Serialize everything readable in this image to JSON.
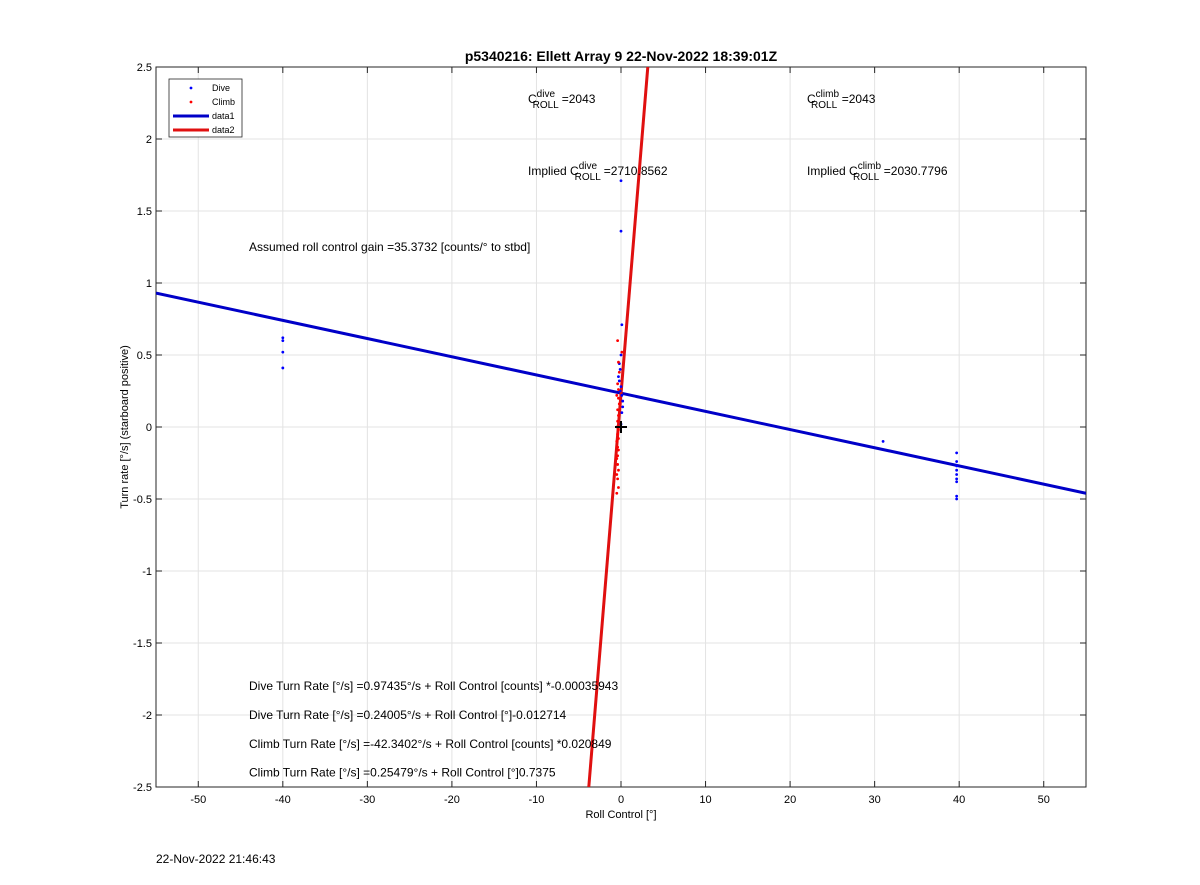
{
  "chart_data": {
    "type": "scatter",
    "title": "p5340216: Ellett Array 9 22-Nov-2022 18:39:01Z",
    "xlabel": "Roll Control [°]",
    "ylabel": "Turn rate [°/s] (starboard positive)",
    "xlim": [
      -55,
      55
    ],
    "ylim": [
      -2.5,
      2.5
    ],
    "xticks": [
      -50,
      -40,
      -30,
      -20,
      -10,
      0,
      10,
      20,
      30,
      40,
      50
    ],
    "xtick_labels": [
      "-50",
      "-40",
      "-30",
      "-20",
      "-10",
      "0",
      "10",
      "20",
      "30",
      "40",
      "50"
    ],
    "yticks": [
      -2.5,
      -2,
      -1.5,
      -1,
      -0.5,
      0,
      0.5,
      1,
      1.5,
      2,
      2.5
    ],
    "ytick_labels": [
      "-2.5",
      "-2",
      "-1.5",
      "-1",
      "-0.5",
      "0",
      "0.5",
      "1",
      "1.5",
      "2",
      "2.5"
    ],
    "grid": true,
    "legend_position": "top-left",
    "series": [
      {
        "name": "Dive",
        "kind": "points",
        "color": "#0000ff",
        "points": [
          [
            -40,
            0.62
          ],
          [
            -40,
            0.6
          ],
          [
            -40,
            0.52
          ],
          [
            -40,
            0.41
          ],
          [
            0,
            1.71
          ],
          [
            0,
            1.36
          ],
          [
            0.1,
            0.71
          ],
          [
            0,
            0.5
          ],
          [
            -0.2,
            0.44
          ],
          [
            -0.1,
            0.4
          ],
          [
            -0.3,
            0.35
          ],
          [
            -0.2,
            0.32
          ],
          [
            0,
            0.28
          ],
          [
            -0.1,
            0.25
          ],
          [
            0.1,
            0.22
          ],
          [
            0.2,
            0.18
          ],
          [
            0.2,
            0.14
          ],
          [
            0.1,
            0.1
          ],
          [
            0,
            0.02
          ],
          [
            31,
            -0.1
          ],
          [
            39.7,
            -0.18
          ],
          [
            39.7,
            -0.24
          ],
          [
            39.7,
            -0.27
          ],
          [
            39.7,
            -0.3
          ],
          [
            39.7,
            -0.33
          ],
          [
            39.7,
            -0.36
          ],
          [
            39.7,
            -0.38
          ],
          [
            39.7,
            -0.48
          ],
          [
            39.7,
            -0.5
          ]
        ]
      },
      {
        "name": "Climb",
        "kind": "points",
        "color": "#ff0000",
        "points": [
          [
            -0.4,
            0.6
          ],
          [
            0.1,
            0.52
          ],
          [
            -0.3,
            0.45
          ],
          [
            -0.2,
            0.38
          ],
          [
            -0.4,
            0.3
          ],
          [
            -0.3,
            0.26
          ],
          [
            -0.5,
            0.22
          ],
          [
            -0.3,
            0.2
          ],
          [
            -0.2,
            0.16
          ],
          [
            -0.4,
            0.12
          ],
          [
            -0.3,
            0.08
          ],
          [
            -0.4,
            0.04
          ],
          [
            -0.5,
            0.0
          ],
          [
            -0.3,
            -0.02
          ],
          [
            -0.4,
            -0.05
          ],
          [
            -0.3,
            -0.08
          ],
          [
            -0.5,
            -0.1
          ],
          [
            -0.4,
            -0.14
          ],
          [
            -0.3,
            -0.16
          ],
          [
            -0.4,
            -0.2
          ],
          [
            -0.5,
            -0.22
          ],
          [
            -0.4,
            -0.26
          ],
          [
            -0.3,
            -0.3
          ],
          [
            -0.5,
            -0.33
          ],
          [
            -0.4,
            -0.36
          ],
          [
            -0.3,
            -0.42
          ],
          [
            -0.5,
            -0.46
          ]
        ]
      },
      {
        "name": "data1",
        "kind": "line",
        "color": "#0000c8",
        "points": [
          [
            -55,
            0.93
          ],
          [
            55,
            -0.46
          ]
        ]
      },
      {
        "name": "data2",
        "kind": "line",
        "color": "#e01010",
        "points": [
          [
            -3.81,
            -2.5
          ],
          [
            3.17,
            2.5
          ]
        ]
      }
    ],
    "marker": {
      "x": 0,
      "y": 0,
      "symbol": "+"
    },
    "annotations": {
      "c_dive": {
        "base": "C",
        "sup": "dive",
        "sub": "ROLL",
        "value": "=2043",
        "x": -11,
        "y": 2.25
      },
      "c_climb": {
        "base": "C",
        "sup": "climb",
        "sub": "ROLL",
        "value": "=2043",
        "x": 22,
        "y": 2.25
      },
      "implied_dive": {
        "prefix": "Implied ",
        "base": "C",
        "sup": "dive",
        "sub": "ROLL",
        "value": "=2710.8562",
        "x": -11,
        "y": 1.75
      },
      "implied_climb": {
        "prefix": "Implied ",
        "base": "C",
        "sup": "climb",
        "sub": "ROLL",
        "value": "=2030.7796",
        "x": 22,
        "y": 1.75
      },
      "gain": {
        "text": "Assumed roll control gain =35.3732 [counts/° to stbd]",
        "x": -44,
        "y": 1.25
      },
      "eq1": {
        "text": "Dive Turn Rate [°/s] =0.97435°/s + Roll Control [counts] *-0.00035943",
        "x": -44,
        "y": -1.8
      },
      "eq2": {
        "text": "Dive Turn Rate [°/s] =0.24005°/s + Roll Control [°]-0.012714",
        "x": -44,
        "y": -2.0
      },
      "eq3": {
        "text": "Climb Turn Rate [°/s] =-42.3402°/s + Roll Control [counts] *0.020849",
        "x": -44,
        "y": -2.2
      },
      "eq4": {
        "text": "Climb Turn Rate [°/s] =0.25479°/s + Roll Control [°]0.7375",
        "x": -44,
        "y": -2.4
      }
    }
  },
  "footer_timestamp": "22-Nov-2022 21:46:43"
}
